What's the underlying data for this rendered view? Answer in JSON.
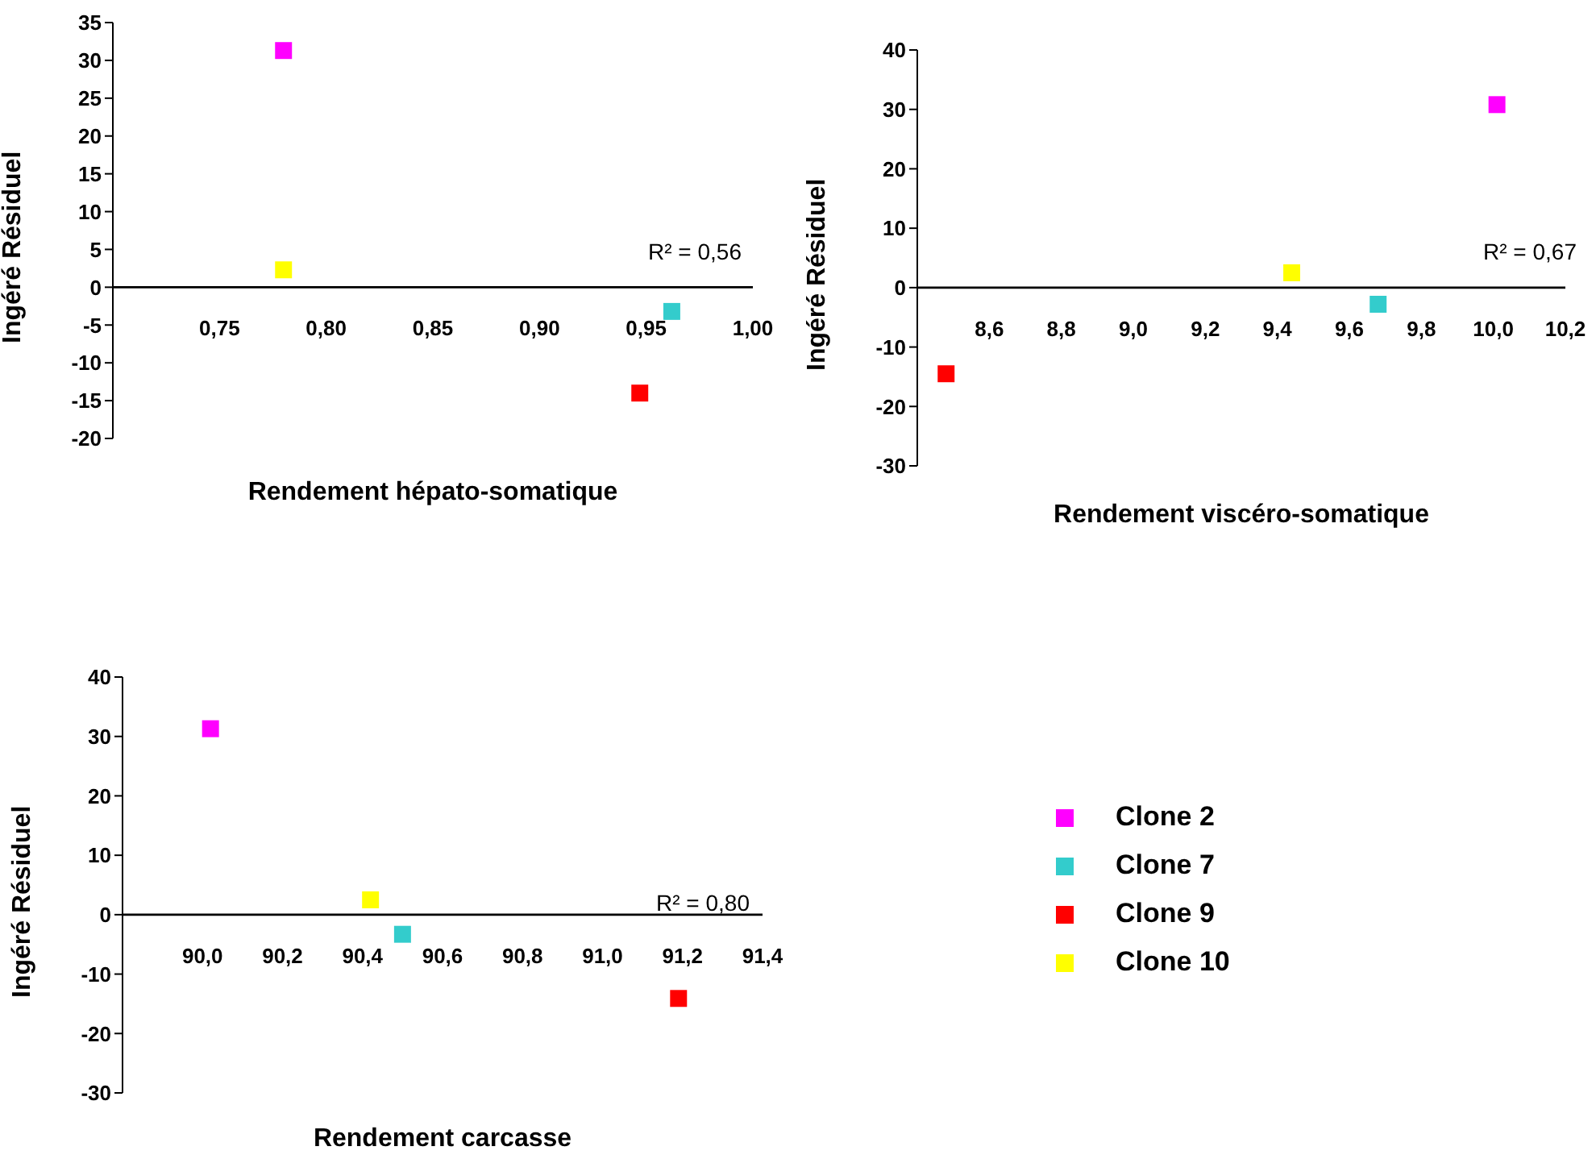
{
  "chart_data": [
    {
      "type": "scatter",
      "xlabel": "Rendement hépato-somatique",
      "ylabel": "Ingéré Résiduel",
      "annotations": [
        "R² = 0,56"
      ],
      "marker": "square",
      "legend": false,
      "xlim": [
        0.7,
        1.0
      ],
      "xticks": [
        {
          "value": 0.75,
          "label": "0,75"
        },
        {
          "value": 0.8,
          "label": "0,80"
        },
        {
          "value": 0.85,
          "label": "0,85"
        },
        {
          "value": 0.9,
          "label": "0,90"
        },
        {
          "value": 0.95,
          "label": "0,95"
        },
        {
          "value": 1.0,
          "label": "1,00"
        }
      ],
      "ylim": [
        -20,
        35
      ],
      "yticks": [
        -20,
        -15,
        -10,
        -5,
        0,
        5,
        10,
        15,
        20,
        25,
        30,
        35
      ],
      "series": [
        {
          "color": "#ff00ff",
          "x": [
            0.78
          ],
          "values": [
            31.3
          ]
        },
        {
          "color": "#33cccc",
          "x": [
            0.962
          ],
          "values": [
            -3.2
          ]
        },
        {
          "color": "#ff0000",
          "x": [
            0.947
          ],
          "values": [
            -14
          ]
        },
        {
          "color": "#ffff00",
          "x": [
            0.78
          ],
          "values": [
            2.3
          ]
        }
      ]
    },
    {
      "type": "scatter",
      "xlabel": "Rendement viscéro-somatique",
      "ylabel": "Ingéré Résiduel",
      "annotations": [
        "R² = 0,67"
      ],
      "marker": "square",
      "legend": false,
      "xlim": [
        8.4,
        10.2
      ],
      "xticks": [
        {
          "value": 8.6,
          "label": "8,6"
        },
        {
          "value": 8.8,
          "label": "8,8"
        },
        {
          "value": 9.0,
          "label": "9,0"
        },
        {
          "value": 9.2,
          "label": "9,2"
        },
        {
          "value": 9.4,
          "label": "9,4"
        },
        {
          "value": 9.6,
          "label": "9,6"
        },
        {
          "value": 9.8,
          "label": "9,8"
        },
        {
          "value": 10.0,
          "label": "10,0"
        },
        {
          "value": 10.2,
          "label": "10,2"
        }
      ],
      "ylim": [
        -30,
        40
      ],
      "yticks": [
        -30,
        -20,
        -10,
        0,
        10,
        20,
        30,
        40
      ],
      "series": [
        {
          "color": "#ff00ff",
          "x": [
            10.01
          ],
          "values": [
            30.8
          ]
        },
        {
          "color": "#33cccc",
          "x": [
            9.68
          ],
          "values": [
            -2.8
          ]
        },
        {
          "color": "#ff0000",
          "x": [
            8.48
          ],
          "values": [
            -14.5
          ]
        },
        {
          "color": "#ffff00",
          "x": [
            9.44
          ],
          "values": [
            2.5
          ]
        }
      ]
    },
    {
      "type": "scatter",
      "xlabel": "Rendement carcasse",
      "ylabel": "Ingéré Résiduel",
      "annotations": [
        "R² = 0,80"
      ],
      "marker": "square",
      "legend": "right",
      "xlim": [
        89.8,
        91.4
      ],
      "xticks": [
        {
          "value": 90.0,
          "label": "90,0"
        },
        {
          "value": 90.2,
          "label": "90,2"
        },
        {
          "value": 90.4,
          "label": "90,4"
        },
        {
          "value": 90.6,
          "label": "90,6"
        },
        {
          "value": 90.8,
          "label": "90,8"
        },
        {
          "value": 91.0,
          "label": "91,0"
        },
        {
          "value": 91.2,
          "label": "91,2"
        },
        {
          "value": 91.4,
          "label": "91,4"
        }
      ],
      "ylim": [
        -30,
        40
      ],
      "yticks": [
        -30,
        -20,
        -10,
        0,
        10,
        20,
        30,
        40
      ],
      "series": [
        {
          "name": "Clone 2",
          "color": "#ff00ff",
          "x": [
            90.02
          ],
          "values": [
            31.3
          ]
        },
        {
          "name": "Clone 7",
          "color": "#33cccc",
          "x": [
            90.5
          ],
          "values": [
            -3.3
          ]
        },
        {
          "name": "Clone 9",
          "color": "#ff0000",
          "x": [
            91.19
          ],
          "values": [
            -14.1
          ]
        },
        {
          "name": "Clone 10",
          "color": "#ffff00",
          "x": [
            90.42
          ],
          "values": [
            2.5
          ]
        }
      ]
    }
  ]
}
